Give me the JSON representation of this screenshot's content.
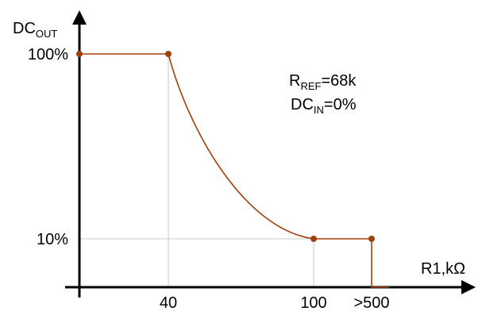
{
  "chart_data": {
    "type": "line",
    "ylabel": {
      "main": "DC",
      "sub": "OUT"
    },
    "xlabel": "R1,kΩ",
    "x_ticks": [
      "40",
      "100",
      ">500"
    ],
    "y_ticks": [
      "100%",
      "10%"
    ],
    "grid": true,
    "series": [
      {
        "color": "#a0420e",
        "points": [
          {
            "x": "0",
            "y": 100
          },
          {
            "x": "40",
            "y": 100
          },
          {
            "x": "100",
            "y": 10
          },
          {
            "x": ">500",
            "y": 10
          },
          {
            "x": ">500",
            "y": 0
          }
        ]
      }
    ],
    "annotations": [
      {
        "main": "R",
        "sub": "REF",
        "rest": "=68k"
      },
      {
        "main": "DC",
        "sub": "IN",
        "rest": "=0%"
      }
    ]
  }
}
